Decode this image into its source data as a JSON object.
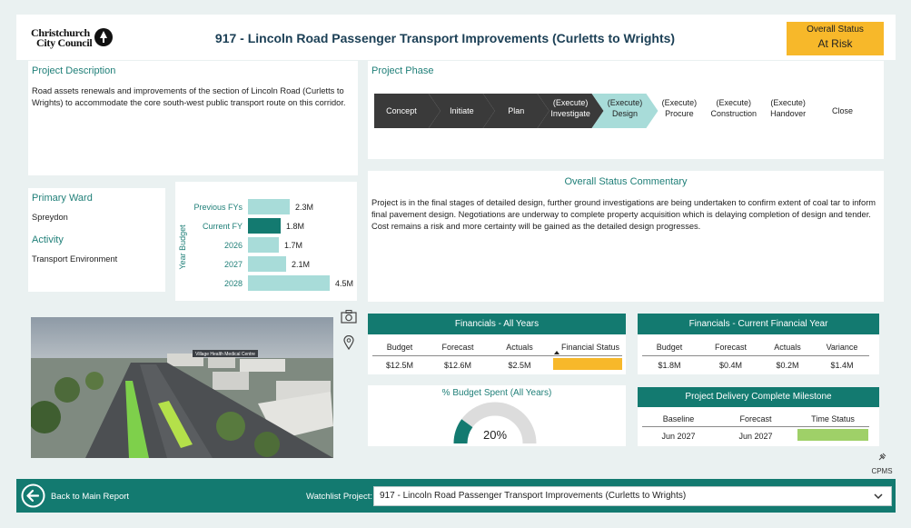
{
  "logo": {
    "line1": "Christchurch",
    "line2": "City Council"
  },
  "page_title": "917 - Lincoln Road Passenger Transport Improvements (Curletts to Wrights)",
  "overall_status": {
    "label": "Overall Status",
    "value": "At Risk",
    "color": "#f7b82a"
  },
  "description": {
    "title": "Project Description",
    "text": "Road assets renewals and improvements of the section of Lincoln Road (Curletts to Wrights) to accommodate the core south-west public transport route on this corridor."
  },
  "phase": {
    "title": "Project Phase",
    "stages": [
      {
        "line1": "Concept",
        "line2": "",
        "state": "done"
      },
      {
        "line1": "Initiate",
        "line2": "",
        "state": "done"
      },
      {
        "line1": "Plan",
        "line2": "",
        "state": "done"
      },
      {
        "line1": "(Execute)",
        "line2": "Investigate",
        "state": "done"
      },
      {
        "line1": "(Execute)",
        "line2": "Design",
        "state": "current"
      },
      {
        "line1": "(Execute)",
        "line2": "Procure",
        "state": "future"
      },
      {
        "line1": "(Execute)",
        "line2": "Construction",
        "state": "future"
      },
      {
        "line1": "(Execute)",
        "line2": "Handover",
        "state": "future"
      },
      {
        "line1": "Close",
        "line2": "",
        "state": "future"
      }
    ],
    "colors": {
      "done": "#3a3a3a",
      "current": "#a8dcd9"
    }
  },
  "commentary": {
    "title": "Overall Status Commentary",
    "text": "Project is in the final stages of detailed design, further ground investigations are being undertaken to confirm extent of coal tar to inform final pavement design. Negotiations are underway to complete property acquisition which is delaying completion of design and tender. Cost remains a risk and more certainty will be gained as the detailed design progresses."
  },
  "ward": {
    "title": "Primary Ward",
    "value": "Spreydon"
  },
  "activity": {
    "title": "Activity",
    "value": "Transport Environment"
  },
  "chart_data": {
    "type": "bar",
    "orientation": "horizontal",
    "ylabel": "Year Budget",
    "categories": [
      "Previous FYs",
      "Current FY",
      "2026",
      "2027",
      "2028"
    ],
    "values": [
      2.3,
      1.8,
      1.7,
      2.1,
      4.5
    ],
    "data_labels": [
      "2.3M",
      "1.8M",
      "1.7M",
      "2.1M",
      "4.5M"
    ],
    "colors": [
      "#a8dcd9",
      "#137a70",
      "#a8dcd9",
      "#a8dcd9",
      "#a8dcd9"
    ],
    "xlim": [
      0,
      4.5
    ]
  },
  "photo": {
    "sign_text": "Village Health Medical Centre"
  },
  "financials_all": {
    "title": "Financials - All Years",
    "headers": [
      "Budget",
      "Forecast",
      "Actuals",
      "Financial Status"
    ],
    "values": [
      "$12.5M",
      "$12.6M",
      "$2.5M"
    ],
    "status_color": "#f7b82a"
  },
  "financials_current": {
    "title": "Financials - Current Financial Year",
    "headers": [
      "Budget",
      "Forecast",
      "Actuals",
      "Variance"
    ],
    "values": [
      "$1.8M",
      "$0.4M",
      "$0.2M",
      "$1.4M"
    ]
  },
  "budget_spent": {
    "title": "% Budget Spent (All Years)",
    "percent": 20,
    "label": "20%",
    "colors": {
      "fill": "#137a70",
      "track": "#dcdcdc"
    }
  },
  "milestone": {
    "title": "Project Delivery Complete Milestone",
    "headers": [
      "Baseline",
      "Forecast",
      "Time Status"
    ],
    "values": [
      "Jun 2027",
      "Jun 2027"
    ],
    "status_color": "#9fd068"
  },
  "bottom": {
    "back_label": "Back to Main Report",
    "watchlist_label": "Watchlist Project:",
    "watchlist_value": "917 - Lincoln Road Passenger Transport Improvements (Curletts to Wrights)"
  },
  "cpms_label": "CPMS",
  "icons": [
    "back-arrow-icon",
    "camera-icon",
    "map-pin-icon",
    "chevron-down-icon",
    "pin-tool-icon",
    "logo-mark-icon"
  ]
}
